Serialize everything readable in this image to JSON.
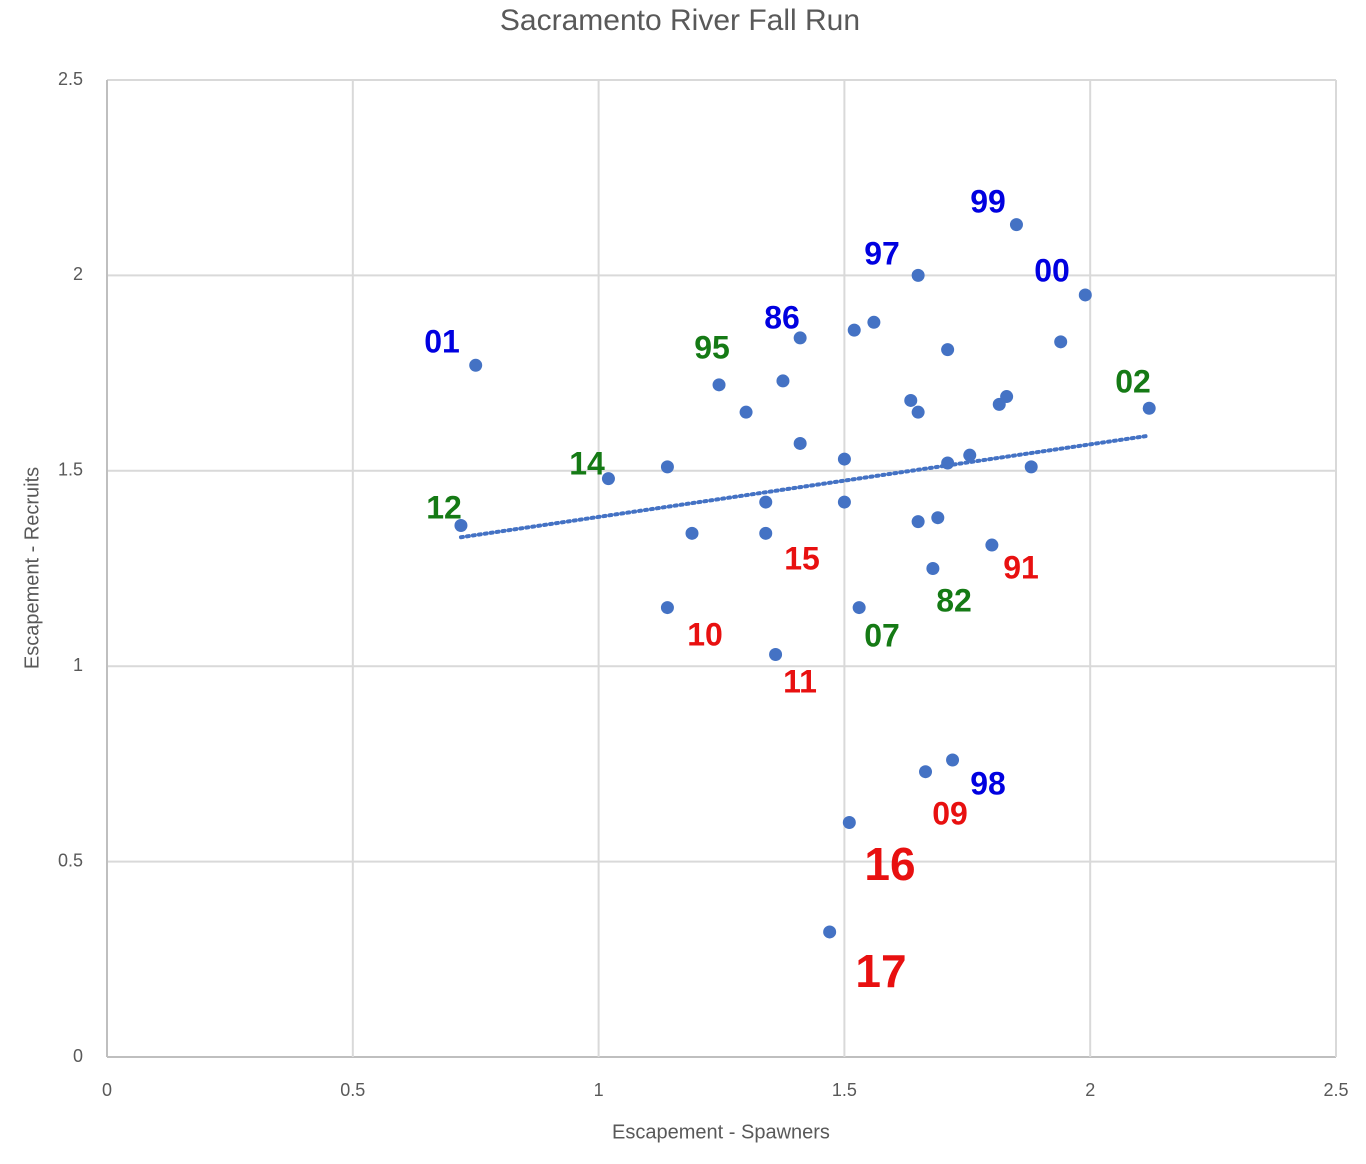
{
  "chart_data": {
    "type": "scatter",
    "title": "Sacramento River Fall Run",
    "x_label": "Escapement - Spawners",
    "y_label": "Escapement - Recruits",
    "color": "#4472c4",
    "grid": true,
    "xlim": [
      0,
      2.5
    ],
    "xticks": [
      0,
      0.5,
      1,
      1.5,
      2,
      2.5
    ],
    "ylim": [
      0,
      2.5
    ],
    "yticks": [
      0,
      0.5,
      1,
      1.5,
      2,
      2.5
    ],
    "x": [
      0.75,
      0.72,
      1.02,
      1.14,
      1.14,
      1.19,
      1.245,
      1.3,
      1.34,
      1.34,
      1.375,
      1.36,
      1.41,
      1.41,
      1.5,
      1.5,
      1.52,
      1.53,
      1.56,
      1.51,
      1.47,
      1.635,
      1.65,
      1.65,
      1.65,
      1.68,
      1.69,
      1.665,
      1.71,
      1.71,
      1.72,
      1.755,
      1.8,
      1.815,
      1.83,
      1.85,
      1.88,
      1.94,
      1.99,
      2.12
    ],
    "values": [
      1.77,
      1.36,
      1.48,
      1.51,
      1.15,
      1.34,
      1.72,
      1.65,
      1.42,
      1.34,
      1.73,
      1.03,
      1.57,
      1.84,
      1.53,
      1.42,
      1.86,
      1.15,
      1.88,
      0.6,
      0.32,
      1.68,
      2.0,
      1.65,
      1.37,
      1.25,
      1.38,
      0.73,
      1.81,
      1.52,
      0.76,
      1.54,
      1.31,
      1.67,
      1.69,
      2.13,
      1.51,
      1.83,
      1.95,
      1.66
    ],
    "trendline": {
      "x": [
        0.72,
        2.12
      ],
      "y": [
        1.33,
        1.59
      ],
      "color": "#4472c4"
    },
    "annotations": [
      {
        "text": "01",
        "color": "#0000e0"
      },
      {
        "text": "12",
        "color": "#157a15"
      },
      {
        "text": "14",
        "color": "#157a15"
      },
      {
        "text": "95",
        "color": "#157a15"
      },
      {
        "text": "86",
        "color": "#0000e0"
      },
      {
        "text": "97",
        "color": "#0000e0"
      },
      {
        "text": "99",
        "color": "#0000e0"
      },
      {
        "text": "00",
        "color": "#0000e0"
      },
      {
        "text": "02",
        "color": "#157a15"
      },
      {
        "text": "15",
        "color": "#e81010"
      },
      {
        "text": "91",
        "color": "#e81010"
      },
      {
        "text": "82",
        "color": "#157a15"
      },
      {
        "text": "07",
        "color": "#157a15"
      },
      {
        "text": "10",
        "color": "#e81010"
      },
      {
        "text": "11",
        "color": "#e81010"
      },
      {
        "text": "98",
        "color": "#0000e0"
      },
      {
        "text": "09",
        "color": "#e81010"
      },
      {
        "text": "16",
        "color": "#e81010"
      },
      {
        "text": "17",
        "color": "#e81010"
      }
    ]
  }
}
